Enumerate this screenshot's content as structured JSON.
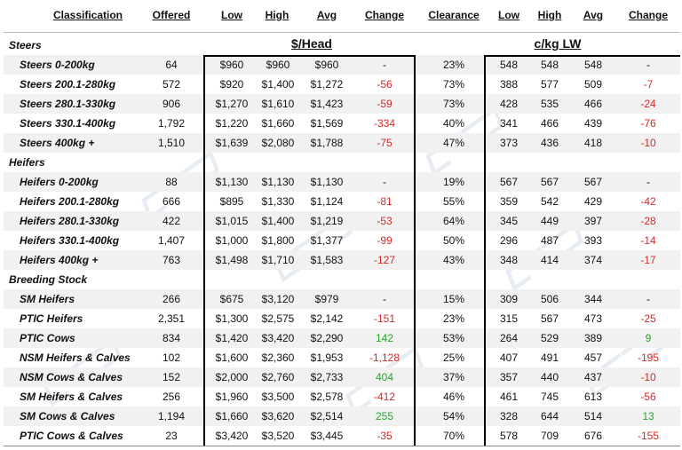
{
  "headers": {
    "classification": "Classification",
    "offered": "Offered",
    "low": "Low",
    "high": "High",
    "avg": "Avg",
    "change": "Change",
    "clearance": "Clearance",
    "low2": "Low",
    "high2": "High",
    "avg2": "Avg",
    "change2": "Change"
  },
  "units": {
    "head": "$/Head",
    "kg": "c/kg LW"
  },
  "rows": [
    {
      "type": "section",
      "label": "Steers"
    },
    {
      "type": "data",
      "label": "Steers 0-200kg",
      "offered": "64",
      "low": "$960",
      "high": "$960",
      "avg": "$960",
      "change": "-",
      "clearance": "23%",
      "low2": "548",
      "high2": "548",
      "avg2": "548",
      "change2": "-"
    },
    {
      "type": "data",
      "label": "Steers 200.1-280kg",
      "offered": "572",
      "low": "$920",
      "high": "$1,400",
      "avg": "$1,272",
      "change": "-56",
      "clearance": "73%",
      "low2": "388",
      "high2": "577",
      "avg2": "509",
      "change2": "-7"
    },
    {
      "type": "data",
      "label": "Steers 280.1-330kg",
      "offered": "906",
      "low": "$1,270",
      "high": "$1,610",
      "avg": "$1,423",
      "change": "-59",
      "clearance": "73%",
      "low2": "428",
      "high2": "535",
      "avg2": "466",
      "change2": "-24"
    },
    {
      "type": "data",
      "label": "Steers 330.1-400kg",
      "offered": "1,792",
      "low": "$1,220",
      "high": "$1,660",
      "avg": "$1,569",
      "change": "-334",
      "clearance": "40%",
      "low2": "341",
      "high2": "466",
      "avg2": "439",
      "change2": "-76"
    },
    {
      "type": "data",
      "label": "Steers 400kg +",
      "offered": "1,510",
      "low": "$1,639",
      "high": "$2,080",
      "avg": "$1,788",
      "change": "-75",
      "clearance": "47%",
      "low2": "373",
      "high2": "436",
      "avg2": "418",
      "change2": "-10"
    },
    {
      "type": "section",
      "label": "Heifers"
    },
    {
      "type": "data",
      "label": "Heifers 0-200kg",
      "offered": "88",
      "low": "$1,130",
      "high": "$1,130",
      "avg": "$1,130",
      "change": "-",
      "clearance": "19%",
      "low2": "567",
      "high2": "567",
      "avg2": "567",
      "change2": "-"
    },
    {
      "type": "data",
      "label": "Heifers 200.1-280kg",
      "offered": "666",
      "low": "$895",
      "high": "$1,330",
      "avg": "$1,124",
      "change": "-81",
      "clearance": "55%",
      "low2": "359",
      "high2": "542",
      "avg2": "429",
      "change2": "-42"
    },
    {
      "type": "data",
      "label": "Heifers 280.1-330kg",
      "offered": "422",
      "low": "$1,015",
      "high": "$1,400",
      "avg": "$1,219",
      "change": "-53",
      "clearance": "64%",
      "low2": "345",
      "high2": "449",
      "avg2": "397",
      "change2": "-28"
    },
    {
      "type": "data",
      "label": "Heifers 330.1-400kg",
      "offered": "1,407",
      "low": "$1,000",
      "high": "$1,800",
      "avg": "$1,377",
      "change": "-99",
      "clearance": "50%",
      "low2": "296",
      "high2": "487",
      "avg2": "393",
      "change2": "-14"
    },
    {
      "type": "data",
      "label": "Heifers 400kg +",
      "offered": "763",
      "low": "$1,498",
      "high": "$1,710",
      "avg": "$1,583",
      "change": "-127",
      "clearance": "43%",
      "low2": "348",
      "high2": "414",
      "avg2": "374",
      "change2": "-17"
    },
    {
      "type": "section",
      "label": "Breeding Stock"
    },
    {
      "type": "data",
      "label": "SM Heifers",
      "offered": "266",
      "low": "$675",
      "high": "$3,120",
      "avg": "$979",
      "change": "-",
      "clearance": "15%",
      "low2": "309",
      "high2": "506",
      "avg2": "344",
      "change2": "-"
    },
    {
      "type": "data",
      "label": "PTIC Heifers",
      "offered": "2,351",
      "low": "$1,300",
      "high": "$2,575",
      "avg": "$2,142",
      "change": "-151",
      "clearance": "23%",
      "low2": "315",
      "high2": "567",
      "avg2": "473",
      "change2": "-25"
    },
    {
      "type": "data",
      "label": "PTIC Cows",
      "offered": "834",
      "low": "$1,420",
      "high": "$3,420",
      "avg": "$2,290",
      "change": "142",
      "clearance": "53%",
      "low2": "264",
      "high2": "529",
      "avg2": "389",
      "change2": "9"
    },
    {
      "type": "data",
      "label": "NSM Heifers & Calves",
      "offered": "102",
      "low": "$1,600",
      "high": "$2,360",
      "avg": "$1,953",
      "change": "-1,128",
      "clearance": "25%",
      "low2": "407",
      "high2": "491",
      "avg2": "457",
      "change2": "-195"
    },
    {
      "type": "data",
      "label": "NSM Cows & Calves",
      "offered": "152",
      "low": "$2,000",
      "high": "$2,760",
      "avg": "$2,733",
      "change": "404",
      "clearance": "37%",
      "low2": "357",
      "high2": "440",
      "avg2": "437",
      "change2": "-10"
    },
    {
      "type": "data",
      "label": "SM Heifers & Calves",
      "offered": "256",
      "low": "$1,960",
      "high": "$3,500",
      "avg": "$2,578",
      "change": "-412",
      "clearance": "46%",
      "low2": "461",
      "high2": "745",
      "avg2": "613",
      "change2": "-56"
    },
    {
      "type": "data",
      "label": "SM Cows & Calves",
      "offered": "1,194",
      "low": "$1,660",
      "high": "$3,620",
      "avg": "$2,514",
      "change": "255",
      "clearance": "54%",
      "low2": "328",
      "high2": "644",
      "avg2": "514",
      "change2": "13"
    },
    {
      "type": "data",
      "label": "PTIC Cows & Calves",
      "offered": "23",
      "low": "$3,420",
      "high": "$3,520",
      "avg": "$3,445",
      "change": "-35",
      "clearance": "70%",
      "low2": "578",
      "high2": "709",
      "avg2": "676",
      "change2": "-155"
    }
  ],
  "colors": {
    "negative": "#d42a2a",
    "positive": "#22a82a",
    "row_shade": "#f1f1f1"
  }
}
